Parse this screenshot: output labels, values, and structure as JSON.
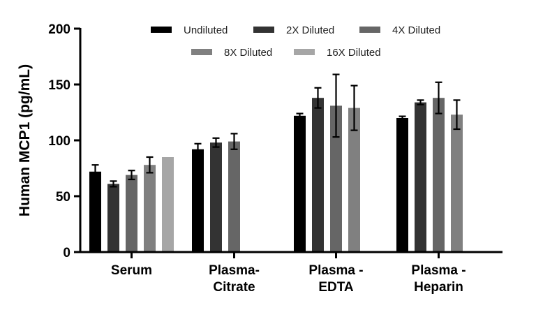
{
  "chart_data": {
    "type": "bar",
    "title": "",
    "xlabel": "",
    "ylabel": "Human  MCP1 (pg/mL)",
    "ylim": [
      0,
      200
    ],
    "yticks": [
      "0",
      "50",
      "100",
      "150",
      "200"
    ],
    "categories": [
      "Serum",
      "Plasma-\nCitrate",
      "Plasma -\nEDTA",
      "Plasma -\nHeparin"
    ],
    "legend_position": "top",
    "grid": false,
    "series": [
      {
        "name": "Undiluted",
        "color": "#000000",
        "values": [
          72,
          92,
          122,
          120
        ],
        "errors": [
          6,
          5,
          2,
          1.5
        ]
      },
      {
        "name": "2X Diluted",
        "color": "#333333",
        "values": [
          61,
          98,
          138,
          134
        ],
        "errors": [
          2.5,
          4,
          9,
          2
        ]
      },
      {
        "name": "4X Diluted",
        "color": "#666666",
        "values": [
          69,
          99,
          131,
          138
        ],
        "errors": [
          4,
          7,
          28,
          14
        ]
      },
      {
        "name": "8X Diluted",
        "color": "#808080",
        "values": [
          78,
          null,
          129,
          123
        ],
        "errors": [
          7,
          null,
          20,
          13
        ]
      },
      {
        "name": "16X Diluted",
        "color": "#a6a6a6",
        "values": [
          85,
          null,
          null,
          null
        ],
        "errors": [
          null,
          null,
          null,
          null
        ]
      }
    ]
  }
}
